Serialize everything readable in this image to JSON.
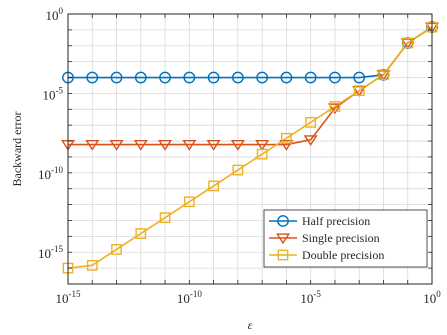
{
  "chart_data": {
    "type": "line",
    "xlabel": "ε",
    "ylabel": "Backward error",
    "x_scale": "log",
    "y_scale": "log",
    "xlim": [
      1e-15,
      1
    ],
    "ylim": [
      1e-17,
      1
    ],
    "x_ticks": [
      {
        "value": 1e-15,
        "base": "10",
        "exp": "-15"
      },
      {
        "value": 1e-10,
        "base": "10",
        "exp": "-10"
      },
      {
        "value": 1e-05,
        "base": "10",
        "exp": "-5"
      },
      {
        "value": 1,
        "base": "10",
        "exp": "0"
      }
    ],
    "y_ticks": [
      {
        "value": 1e-15,
        "base": "10",
        "exp": "-15"
      },
      {
        "value": 1e-10,
        "base": "10",
        "exp": "-10"
      },
      {
        "value": 1e-05,
        "base": "10",
        "exp": "-5"
      },
      {
        "value": 1,
        "base": "10",
        "exp": "0"
      }
    ],
    "grid": true,
    "legend_position": "bottom-right",
    "x": [
      1e-15,
      1e-14,
      1e-13,
      1e-12,
      1e-11,
      1e-10,
      1e-09,
      1e-08,
      1e-07,
      1e-06,
      1e-05,
      0.0001,
      0.001,
      0.01,
      0.1,
      1
    ],
    "series": [
      {
        "name": "Half precision",
        "color": "#0072BD",
        "marker": "circle",
        "values": [
          0.0001,
          0.0001,
          0.0001,
          0.0001,
          0.0001,
          0.0001,
          0.0001,
          0.0001,
          0.0001,
          0.0001,
          0.0001,
          0.0001,
          0.0001,
          0.00015,
          0.015,
          0.15
        ]
      },
      {
        "name": "Single precision",
        "color": "#D95319",
        "marker": "triangle-down",
        "values": [
          6e-09,
          6e-09,
          6e-09,
          6e-09,
          6e-09,
          6e-09,
          6e-09,
          6e-09,
          6e-09,
          6e-09,
          1.2e-08,
          1.2e-06,
          1.5e-05,
          0.00015,
          0.015,
          0.15
        ]
      },
      {
        "name": "Double precision",
        "color": "#EDB120",
        "marker": "square",
        "values": [
          1e-16,
          1.5e-16,
          1.5e-15,
          1.5e-14,
          1.5e-13,
          1.5e-12,
          1.5e-11,
          1.5e-10,
          1.5e-09,
          1.5e-08,
          1.5e-07,
          1.5e-06,
          1.5e-05,
          0.00015,
          0.015,
          0.15
        ]
      }
    ]
  }
}
